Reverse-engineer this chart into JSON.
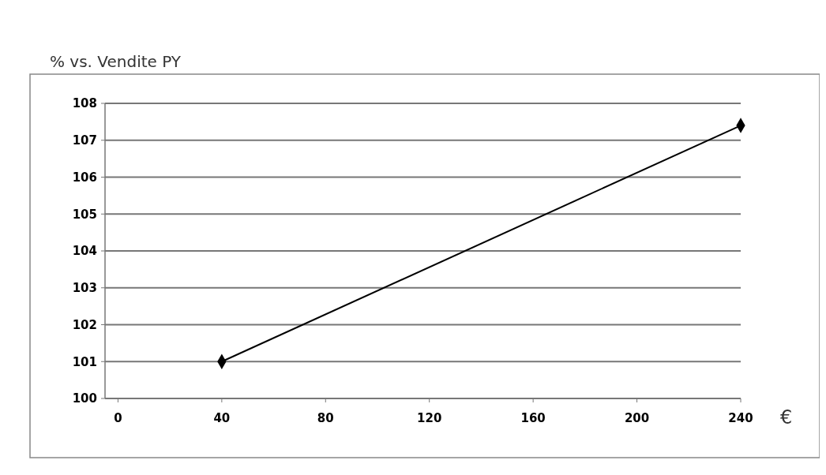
{
  "chart_data": {
    "type": "line",
    "ylabel": "% vs. Vendite PY",
    "xlabel": "€",
    "x": [
      40,
      240
    ],
    "series": [
      {
        "color": "#000000",
        "values": [
          101,
          107.4
        ]
      }
    ],
    "xlim": [
      -5,
      240
    ],
    "xticks": [
      0,
      40,
      80,
      120,
      160,
      200,
      240
    ],
    "ylim": [
      100,
      108
    ],
    "yticks": [
      100,
      101,
      102,
      103,
      104,
      105,
      106,
      107,
      108
    ],
    "grid": "y",
    "marker": "diamond",
    "line_style": "solid"
  }
}
